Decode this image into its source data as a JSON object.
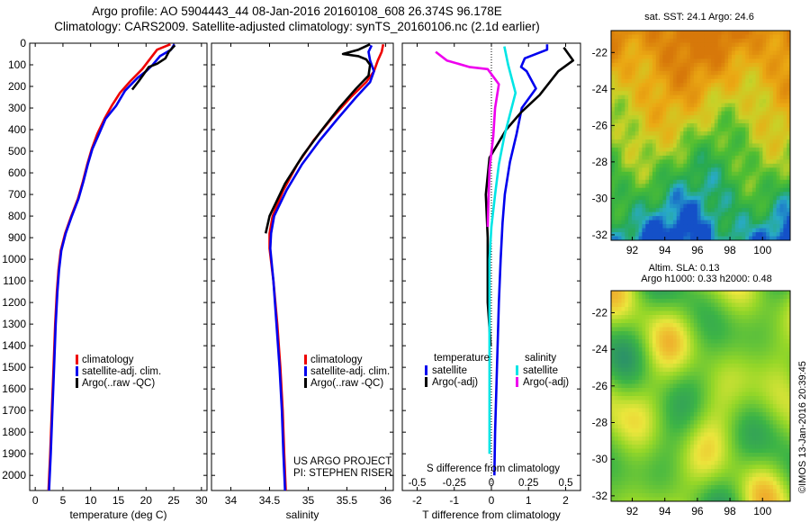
{
  "header": {
    "line1": "Argo profile: AO 5904443_44 08-Jan-2016 20160108_608 26.374S 96.178E",
    "line2": "Climatology: CARS2009. Satellite-adjusted climatology: synTS_20160106.nc (2.1d earlier)"
  },
  "colors": {
    "climatology": "#ee0000",
    "satellite": "#0000ee",
    "argo": "#000000",
    "satellite_diff": "#00e5e5",
    "argo_s_diff": "#ee00ee"
  },
  "chart_data": [
    {
      "type": "line",
      "name": "temperature",
      "xlabel": "temperature (deg C)",
      "xlim": [
        -1,
        31
      ],
      "ylim": [
        2070,
        0
      ],
      "xticks": [
        0,
        5,
        10,
        15,
        20,
        25,
        30
      ],
      "yticks": [
        0,
        100,
        200,
        300,
        400,
        500,
        600,
        700,
        800,
        900,
        1000,
        1100,
        1200,
        1300,
        1400,
        1500,
        1600,
        1700,
        1800,
        1900,
        2000
      ],
      "legend": [
        "climatology",
        "satellite-adj. clim.",
        "Argo(..raw -QC)"
      ],
      "series": [
        {
          "name": "climatology",
          "color": "#ee0000",
          "points": [
            [
              24.4,
              5
            ],
            [
              22,
              30
            ],
            [
              20.8,
              70
            ],
            [
              19.3,
              120
            ],
            [
              17.2,
              175
            ],
            [
              15.3,
              230
            ],
            [
              13.8,
              290
            ],
            [
              12.5,
              350
            ],
            [
              11.2,
              420
            ],
            [
              10.2,
              490
            ],
            [
              9.4,
              560
            ],
            [
              8.6,
              640
            ],
            [
              7.7,
              720
            ],
            [
              6.5,
              800
            ],
            [
              5.4,
              880
            ],
            [
              4.6,
              960
            ],
            [
              4.2,
              1050
            ],
            [
              3.9,
              1150
            ],
            [
              3.6,
              1300
            ],
            [
              3.3,
              1500
            ],
            [
              3,
              1700
            ],
            [
              2.7,
              1900
            ],
            [
              2.4,
              2070
            ]
          ]
        },
        {
          "name": "satellite-adj. clim.",
          "color": "#0000ee",
          "points": [
            [
              25.1,
              5
            ],
            [
              24.5,
              30
            ],
            [
              22.5,
              60
            ],
            [
              21.2,
              100
            ],
            [
              20,
              130
            ],
            [
              18.5,
              160
            ],
            [
              16.2,
              220
            ],
            [
              14.6,
              290
            ],
            [
              12.7,
              350
            ],
            [
              11.5,
              420
            ],
            [
              10.3,
              490
            ],
            [
              9.5,
              560
            ],
            [
              8.7,
              640
            ],
            [
              7.8,
              720
            ],
            [
              6.6,
              800
            ],
            [
              5.5,
              880
            ],
            [
              4.7,
              960
            ],
            [
              4.3,
              1050
            ],
            [
              4,
              1150
            ],
            [
              3.7,
              1300
            ],
            [
              3.4,
              1500
            ],
            [
              3.1,
              1700
            ],
            [
              2.8,
              1900
            ],
            [
              2.5,
              2070
            ]
          ]
        },
        {
          "name": "Argo(..raw -QC)",
          "color": "#000000",
          "points": [
            [
              25.2,
              10
            ],
            [
              24.1,
              40
            ],
            [
              23.5,
              70
            ],
            [
              22,
              95
            ],
            [
              20.5,
              110
            ],
            [
              18.7,
              175
            ],
            [
              17.5,
              215
            ]
          ]
        }
      ]
    },
    {
      "type": "line",
      "name": "salinity",
      "xlabel": "salinity",
      "xlim": [
        33.75,
        36.1
      ],
      "ylim": [
        2070,
        0
      ],
      "xticks": [
        34,
        34.5,
        35,
        35.5,
        36
      ],
      "legend": [
        "climatology",
        "satellite-adj. clim.",
        "Argo(..raw -QC)"
      ],
      "annotations": [
        "US ARGO PROJECT",
        "PI: STEPHEN RISER"
      ],
      "series": [
        {
          "name": "climatology",
          "color": "#ee0000",
          "points": [
            [
              35.97,
              5
            ],
            [
              35.95,
              40
            ],
            [
              35.9,
              80
            ],
            [
              35.85,
              130
            ],
            [
              35.75,
              180
            ],
            [
              35.55,
              250
            ],
            [
              35.3,
              350
            ],
            [
              35.07,
              450
            ],
            [
              34.86,
              560
            ],
            [
              34.68,
              680
            ],
            [
              34.54,
              800
            ],
            [
              34.5,
              880
            ],
            [
              34.5,
              950
            ],
            [
              34.55,
              1100
            ],
            [
              34.6,
              1300
            ],
            [
              34.64,
              1500
            ],
            [
              34.67,
              1700
            ],
            [
              34.69,
              1900
            ],
            [
              34.71,
              2070
            ]
          ]
        },
        {
          "name": "satellite-adj. clim.",
          "color": "#0000ee",
          "points": [
            [
              35.82,
              10
            ],
            [
              35.78,
              40
            ],
            [
              35.8,
              80
            ],
            [
              35.85,
              130
            ],
            [
              35.8,
              180
            ],
            [
              35.62,
              250
            ],
            [
              35.38,
              350
            ],
            [
              35.15,
              450
            ],
            [
              34.92,
              560
            ],
            [
              34.72,
              680
            ],
            [
              34.56,
              800
            ],
            [
              34.52,
              880
            ],
            [
              34.51,
              950
            ],
            [
              34.55,
              1100
            ],
            [
              34.59,
              1300
            ],
            [
              34.63,
              1500
            ],
            [
              34.66,
              1700
            ],
            [
              34.68,
              1900
            ],
            [
              34.7,
              2070
            ]
          ]
        },
        {
          "name": "Argo(..raw -QC)",
          "color": "#000000",
          "points": [
            [
              35.8,
              5
            ],
            [
              35.65,
              30
            ],
            [
              35.45,
              50
            ],
            [
              35.65,
              60
            ],
            [
              35.75,
              75
            ],
            [
              35.8,
              100
            ],
            [
              35.78,
              150
            ],
            [
              35.62,
              210
            ],
            [
              35.4,
              300
            ],
            [
              35.18,
              400
            ],
            [
              34.93,
              520
            ],
            [
              34.7,
              650
            ],
            [
              34.5,
              800
            ],
            [
              34.45,
              880
            ]
          ]
        }
      ]
    },
    {
      "type": "line",
      "name": "differences",
      "xlabel": "T difference from climatology",
      "xlim": [
        -2.4,
        2.4
      ],
      "ylim": [
        2070,
        0
      ],
      "xticks": [
        -2,
        -1,
        0,
        1,
        2
      ],
      "top_axis_label": "S difference from climatology",
      "top_ticks": [
        -0.5,
        -0.25,
        0,
        0.25,
        0.5
      ],
      "zero_line": true,
      "legend_headers": [
        "temperature",
        "salinity"
      ],
      "legend": [
        "satellite",
        "Argo(-adj)",
        "satellite",
        "Argo(-adj)"
      ],
      "series": [
        {
          "name": "satellite",
          "color": "#0000ee",
          "points": [
            [
              1.5,
              5
            ],
            [
              1.5,
              30
            ],
            [
              0.9,
              70
            ],
            [
              0.8,
              110
            ],
            [
              0.95,
              130
            ],
            [
              1.2,
              210
            ],
            [
              0.82,
              300
            ],
            [
              0.68,
              420
            ],
            [
              0.5,
              550
            ],
            [
              0.36,
              700
            ],
            [
              0.3,
              830
            ],
            [
              0.25,
              1000
            ],
            [
              0.2,
              1200
            ],
            [
              0.15,
              1500
            ],
            [
              0.1,
              1800
            ],
            [
              0.08,
              2000
            ]
          ]
        },
        {
          "name": "Argo(-adj)",
          "color": "#000000",
          "points": [
            [
              1.95,
              20
            ],
            [
              2.2,
              80
            ],
            [
              1.8,
              130
            ],
            [
              1.3,
              240
            ],
            [
              0.8,
              320
            ],
            [
              0.4,
              400
            ],
            [
              -0.05,
              530
            ],
            [
              -0.15,
              700
            ],
            [
              -0.1,
              900
            ],
            [
              -0.1,
              1200
            ],
            [
              -0.02,
              1400
            ]
          ]
        },
        {
          "name": "satellite",
          "color": "#00e5e5",
          "points": [
            [
              0.35,
              15
            ],
            [
              0.45,
              100
            ],
            [
              0.65,
              230
            ],
            [
              0.5,
              330
            ],
            [
              0.35,
              430
            ],
            [
              0.2,
              560
            ],
            [
              0.1,
              700
            ],
            [
              0,
              850
            ],
            [
              -0.05,
              1000
            ],
            [
              -0.05,
              1300
            ],
            [
              -0.05,
              1600
            ],
            [
              -0.05,
              1900
            ]
          ]
        },
        {
          "name": "Argo(-adj)",
          "color": "#ee00ee",
          "points": [
            [
              -1.5,
              40
            ],
            [
              -1.2,
              80
            ],
            [
              -0.6,
              110
            ],
            [
              -0.1,
              120
            ],
            [
              0.2,
              190
            ],
            [
              0.1,
              300
            ],
            [
              0.05,
              430
            ],
            [
              -0.05,
              580
            ],
            [
              -0.08,
              730
            ],
            [
              -0.1,
              850
            ]
          ]
        }
      ]
    },
    {
      "type": "heatmap",
      "name": "sst-map",
      "title": "sat. SST: 24.1  Argo: 24.6",
      "xticks": [
        92,
        94,
        96,
        98,
        100
      ],
      "yticks": [
        -22,
        -24,
        -26,
        -28,
        -30,
        -32
      ],
      "xlim": [
        90.7,
        101.7
      ],
      "ylim": [
        -32.3,
        -20.8
      ]
    },
    {
      "type": "heatmap",
      "name": "sla-map",
      "title": "Altim. SLA: 0.13",
      "subtitle": "Argo h1000: 0.33 h2000: 0.48",
      "xticks": [
        92,
        94,
        96,
        98,
        100
      ],
      "yticks": [
        -22,
        -24,
        -26,
        -28,
        -30,
        -32
      ],
      "xlim": [
        90.7,
        101.7
      ],
      "ylim": [
        -32.3,
        -20.8
      ]
    }
  ],
  "footer": {
    "stamp": "©IMOS 13-Jan-2016 20:39:45"
  }
}
